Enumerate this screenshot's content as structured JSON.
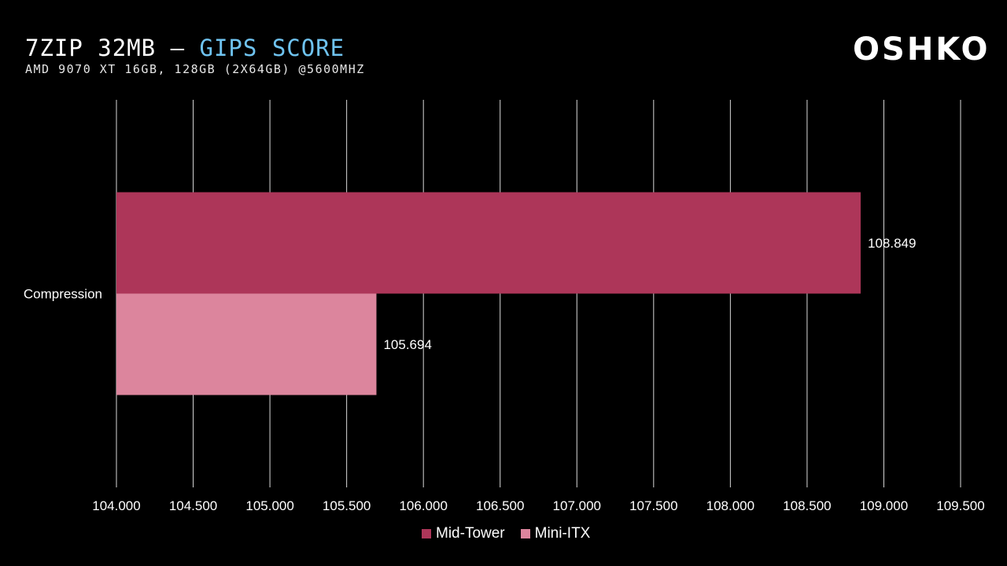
{
  "header": {
    "title_main": "7ZIP 32MB – ",
    "title_accent": "GIPS SCORE",
    "subtitle": "AMD 9070 XT 16GB, 128GB (2x64GB) @5600MHZ",
    "logo_text": "OSHKO"
  },
  "colors": {
    "title_accent": "#6fc3f0",
    "mid_tower": "#ad3659",
    "mini_itx": "#dc859d",
    "grid": "#d9d9d9"
  },
  "chart_data": {
    "type": "bar",
    "orientation": "horizontal",
    "categories": [
      "Compression"
    ],
    "series": [
      {
        "name": "Mid-Tower",
        "values": [
          108.849
        ],
        "labels": [
          "108.849"
        ],
        "color": "#ad3659"
      },
      {
        "name": "Mini-ITX",
        "values": [
          105.694
        ],
        "labels": [
          "105.694"
        ],
        "color": "#dc859d"
      }
    ],
    "xlim": [
      104.0,
      109.5
    ],
    "xticks": [
      104.0,
      104.5,
      105.0,
      105.5,
      106.0,
      106.5,
      107.0,
      107.5,
      108.0,
      108.5,
      109.0,
      109.5
    ],
    "xtick_labels": [
      "104.000",
      "104.500",
      "105.000",
      "105.500",
      "106.000",
      "106.500",
      "107.000",
      "107.500",
      "108.000",
      "108.500",
      "109.000",
      "109.500"
    ],
    "grid": "vertical",
    "legend": "bottom"
  }
}
